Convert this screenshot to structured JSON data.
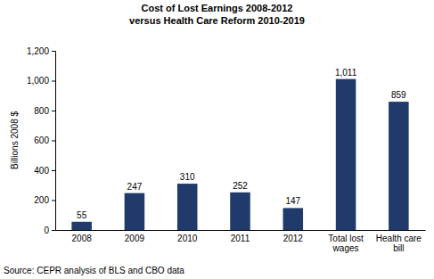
{
  "chart_data": {
    "type": "bar",
    "title": "Cost of Lost Earnings 2008-2012",
    "subtitle": "versus Health Care Reform 2010-2019",
    "y_label": "Billions 2008 $",
    "source": "Source: CEPR analysis of BLS and CBO data",
    "categories": [
      "2008",
      "2009",
      "2010",
      "2011",
      "2012",
      "Total lost wages",
      "Health care bill"
    ],
    "values": [
      55,
      247,
      310,
      252,
      147,
      1011,
      859
    ],
    "value_labels": [
      "55",
      "247",
      "310",
      "252",
      "147",
      "1,011",
      "859"
    ],
    "data_labels": true,
    "color": "#1f3a6b",
    "ylim": [
      0,
      1200
    ],
    "yticks": [
      0,
      200,
      400,
      600,
      800,
      {
        "value": 1000,
        "label": "1,000"
      },
      {
        "value": 1200,
        "label": "1,200"
      }
    ],
    "grid": false
  }
}
